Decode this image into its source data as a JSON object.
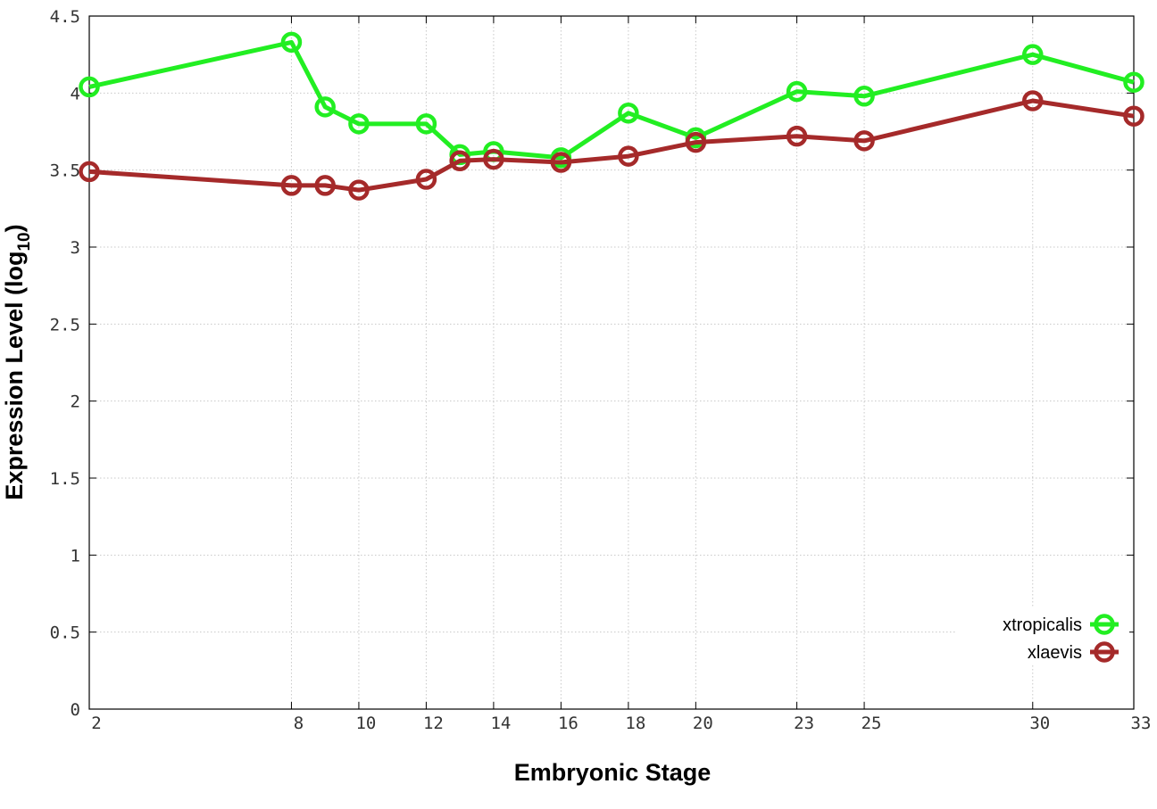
{
  "chart_data": {
    "type": "line",
    "title": "",
    "xlabel": "Embryonic Stage",
    "ylabel_main": "Expression Level (log",
    "ylabel_sub": "10",
    "ylabel_close": ")",
    "x_ticks": [
      2,
      8,
      10,
      12,
      14,
      16,
      18,
      20,
      23,
      25,
      30,
      33
    ],
    "y_ticks": [
      "0",
      "0.5",
      "1",
      "1.5",
      "2",
      "2.5",
      "3",
      "3.5",
      "4",
      "4.5"
    ],
    "xlim": [
      2,
      33
    ],
    "ylim": [
      0,
      4.5
    ],
    "grid": true,
    "legend_position": "bottom-right",
    "series": [
      {
        "name": "xtropicalis",
        "color": "#22ee22",
        "x": [
          2,
          8,
          9,
          10,
          12,
          13,
          14,
          16,
          18,
          20,
          23,
          25,
          30,
          33
        ],
        "y": [
          4.04,
          4.33,
          3.91,
          3.8,
          3.8,
          3.6,
          3.62,
          3.58,
          3.87,
          3.71,
          4.01,
          3.98,
          4.25,
          4.07
        ]
      },
      {
        "name": "xlaevis",
        "color": "#a52a2a",
        "x": [
          2,
          8,
          9,
          10,
          12,
          13,
          14,
          16,
          18,
          20,
          23,
          25,
          30,
          33
        ],
        "y": [
          3.49,
          3.4,
          3.4,
          3.37,
          3.44,
          3.56,
          3.57,
          3.55,
          3.59,
          3.68,
          3.72,
          3.69,
          3.95,
          3.85
        ]
      }
    ]
  }
}
